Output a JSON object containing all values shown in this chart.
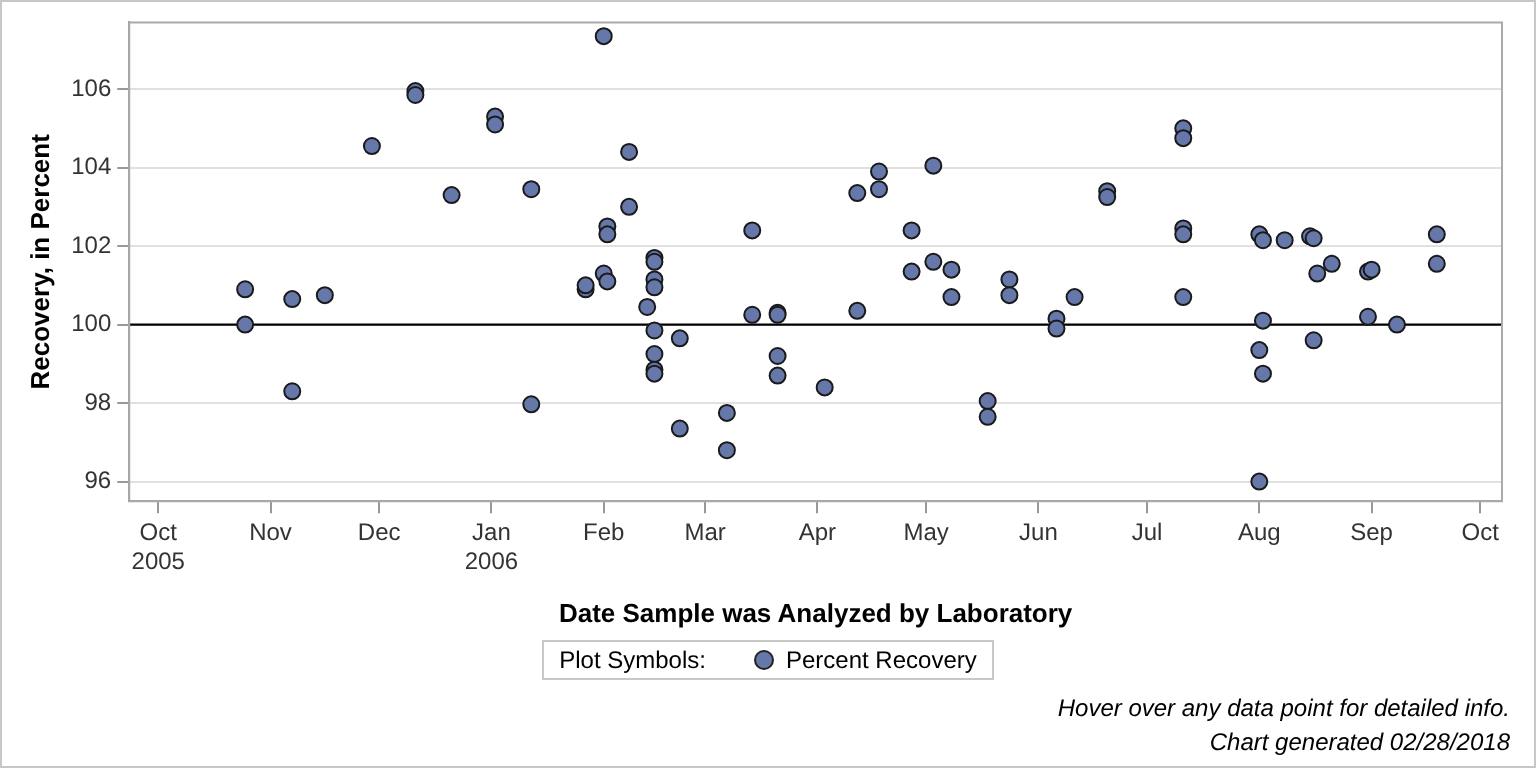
{
  "chart_data": {
    "type": "scatter",
    "xlabel": "Date Sample was Analyzed by Laboratory",
    "ylabel": "Recovery, in Percent",
    "legend_title": "Plot Symbols:",
    "legend": "bottom",
    "grid": "y",
    "marker": "circle",
    "xlim": [
      "2005-09-23",
      "2006-10-07"
    ],
    "xticks": [
      {
        "value": "2005-10-01",
        "label": "Oct 2005"
      },
      {
        "value": "2005-11-01",
        "label": "Nov"
      },
      {
        "value": "2005-12-01",
        "label": "Dec"
      },
      {
        "value": "2006-01-01",
        "label": "Jan 2006"
      },
      {
        "value": "2006-02-01",
        "label": "Feb"
      },
      {
        "value": "2006-03-01",
        "label": "Mar"
      },
      {
        "value": "2006-04-01",
        "label": "Apr"
      },
      {
        "value": "2006-05-01",
        "label": "May"
      },
      {
        "value": "2006-06-01",
        "label": "Jun"
      },
      {
        "value": "2006-07-01",
        "label": "Jul"
      },
      {
        "value": "2006-08-01",
        "label": "Aug"
      },
      {
        "value": "2006-09-01",
        "label": "Sep"
      },
      {
        "value": "2006-10-01",
        "label": "Oct"
      }
    ],
    "ylim": [
      95.5,
      107.7
    ],
    "yticks": [
      96,
      98,
      100,
      102,
      104,
      106
    ],
    "ref_lines": [
      {
        "axis": "y",
        "value": 100,
        "color": "#000000"
      }
    ],
    "annotations": [
      "Hover over any data point for detailed info.",
      "Chart generated 02/28/2018"
    ],
    "series": [
      {
        "name": "Percent Recovery",
        "color": "#6677aa",
        "x": [
          "2005-10-25",
          "2005-10-25",
          "2005-11-07",
          "2005-11-07",
          "2005-11-16",
          "2005-11-29",
          "2005-12-11",
          "2005-12-11",
          "2005-12-21",
          "2006-01-02",
          "2006-01-02",
          "2006-01-12",
          "2006-01-12",
          "2006-01-27",
          "2006-01-27",
          "2006-02-01",
          "2006-02-02",
          "2006-02-02",
          "2006-02-01",
          "2006-02-02",
          "2006-02-08",
          "2006-02-08",
          "2006-02-13",
          "2006-02-15",
          "2006-02-15",
          "2006-02-15",
          "2006-02-15",
          "2006-02-15",
          "2006-02-15",
          "2006-02-15",
          "2006-02-15",
          "2006-02-22",
          "2006-02-22",
          "2006-03-07",
          "2006-03-07",
          "2006-03-14",
          "2006-03-14",
          "2006-03-21",
          "2006-03-21",
          "2006-03-21",
          "2006-03-21",
          "2006-04-03",
          "2006-04-12",
          "2006-04-12",
          "2006-04-18",
          "2006-04-18",
          "2006-04-27",
          "2006-04-27",
          "2006-05-03",
          "2006-05-03",
          "2006-05-08",
          "2006-05-08",
          "2006-05-18",
          "2006-05-18",
          "2006-05-24",
          "2006-05-24",
          "2006-06-06",
          "2006-06-06",
          "2006-06-11",
          "2006-06-20",
          "2006-06-20",
          "2006-07-11",
          "2006-07-11",
          "2006-07-11",
          "2006-07-11",
          "2006-07-11",
          "2006-08-01",
          "2006-08-02",
          "2006-08-01",
          "2006-08-02",
          "2006-08-02",
          "2006-08-01",
          "2006-08-08",
          "2006-08-15",
          "2006-08-16",
          "2006-08-17",
          "2006-08-21",
          "2006-08-16",
          "2006-08-31",
          "2006-09-01",
          "2006-08-31",
          "2006-09-08",
          "2006-09-19",
          "2006-09-19"
        ],
        "values": [
          100.9,
          100.0,
          100.65,
          98.3,
          100.75,
          104.55,
          105.95,
          105.85,
          103.3,
          105.3,
          105.1,
          103.45,
          97.97,
          100.9,
          101.0,
          107.35,
          102.5,
          102.3,
          101.3,
          101.1,
          103.0,
          104.4,
          100.45,
          101.7,
          101.6,
          101.15,
          100.95,
          99.85,
          99.25,
          98.85,
          98.75,
          99.65,
          97.35,
          97.75,
          96.8,
          102.4,
          100.25,
          100.3,
          100.25,
          99.2,
          98.7,
          98.4,
          103.35,
          100.35,
          103.9,
          103.45,
          102.4,
          101.35,
          104.05,
          101.6,
          101.4,
          100.7,
          98.05,
          97.65,
          101.15,
          100.75,
          100.15,
          99.9,
          100.7,
          103.4,
          103.25,
          105.0,
          104.75,
          102.45,
          102.3,
          100.7,
          102.3,
          102.15,
          99.35,
          98.75,
          100.1,
          96.0,
          102.15,
          102.25,
          102.2,
          101.3,
          101.55,
          99.6,
          101.35,
          101.4,
          100.2,
          100.0,
          102.3,
          101.55
        ]
      }
    ]
  }
}
